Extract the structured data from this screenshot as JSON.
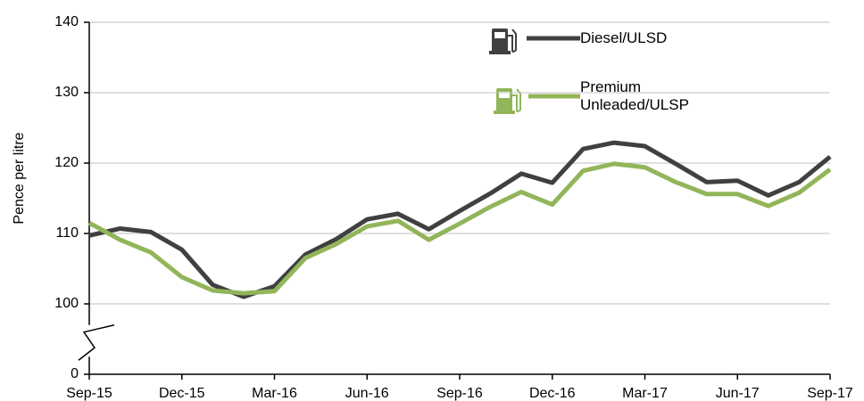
{
  "chart_data": {
    "type": "line",
    "y_label": "Pence per litre",
    "categories": [
      "Sep-15",
      null,
      null,
      "Dec-15",
      null,
      null,
      "Mar-16",
      null,
      null,
      "Jun-16",
      null,
      null,
      "Sep-16",
      null,
      null,
      "Dec-16",
      null,
      null,
      "Mar-17",
      null,
      null,
      "Jun-17",
      null,
      null,
      "Sep-17"
    ],
    "series": [
      {
        "name": "Diesel/ULSD",
        "color": "#404040",
        "values": [
          109.7,
          110.7,
          110.2,
          107.7,
          102.7,
          101.0,
          102.5,
          107.0,
          109.2,
          112.0,
          112.8,
          110.6,
          113.2,
          115.7,
          118.5,
          117.2,
          122.0,
          122.9,
          122.4,
          119.9,
          117.3,
          117.5,
          115.4,
          117.3,
          120.9
        ]
      },
      {
        "name": "Premium Unleaded/ULSP",
        "color": "#92b55a",
        "values": [
          111.5,
          109.1,
          107.3,
          103.8,
          101.9,
          101.5,
          101.8,
          106.5,
          108.5,
          111.0,
          111.8,
          109.1,
          111.4,
          113.8,
          115.9,
          114.1,
          118.9,
          119.9,
          119.4,
          117.3,
          115.6,
          115.6,
          113.9,
          115.8,
          119.1
        ]
      }
    ],
    "ylim": [
      0,
      140
    ],
    "yticks": [
      0,
      100,
      110,
      120,
      130,
      140
    ],
    "axis_break": true,
    "grid": true
  }
}
